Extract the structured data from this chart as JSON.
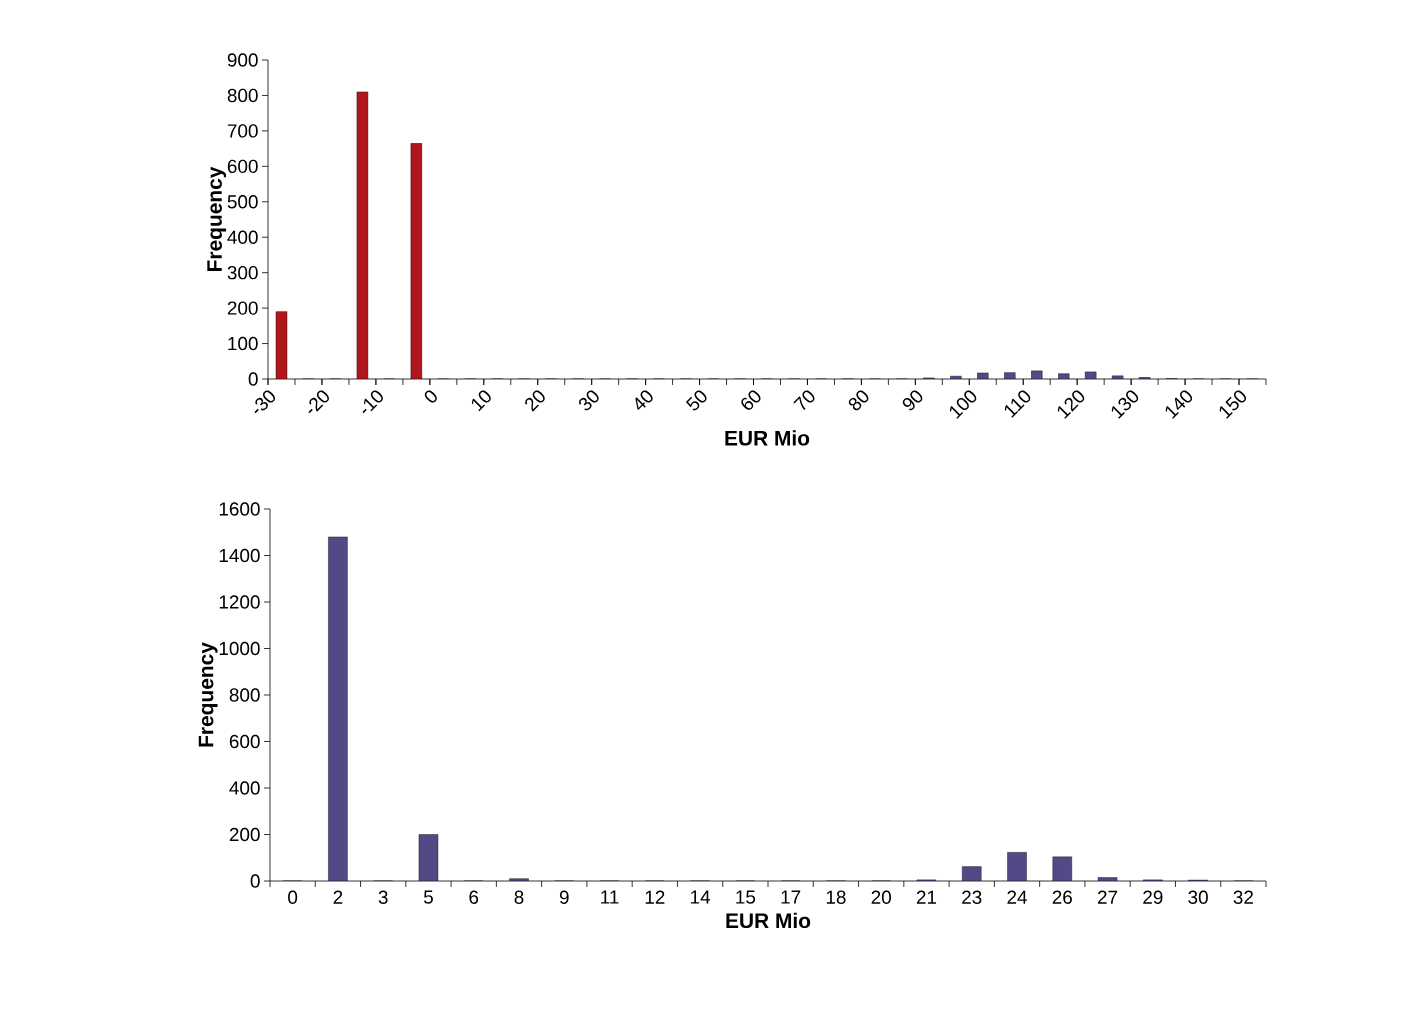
{
  "chart_data": [
    {
      "type": "histogram",
      "xlabel": "EUR Mio",
      "ylabel": "Frequency",
      "bins": [
        -30,
        -25,
        -20,
        -15,
        -10,
        -5,
        0,
        5,
        10,
        15,
        20,
        25,
        30,
        35,
        40,
        45,
        50,
        55,
        60,
        65,
        70,
        75,
        80,
        85,
        90,
        95,
        100,
        105,
        110,
        115,
        120,
        125,
        130,
        135,
        140,
        145,
        150,
        155
      ],
      "values": [
        190,
        0,
        0,
        810,
        0,
        665,
        0,
        0,
        0,
        0,
        0,
        0,
        0,
        0,
        0,
        0,
        0,
        0,
        0,
        0,
        0,
        0,
        0,
        0,
        3,
        8,
        17,
        18,
        23,
        15,
        20,
        9,
        5,
        1,
        0,
        0,
        0
      ],
      "colors": [
        "#b0161b",
        "#b0161b",
        "#b0161b",
        "#b0161b",
        "#b0161b",
        "#b0161b",
        "#514a87",
        "#514a87",
        "#514a87",
        "#514a87",
        "#514a87",
        "#514a87",
        "#514a87",
        "#514a87",
        "#514a87",
        "#514a87",
        "#514a87",
        "#514a87",
        "#514a87",
        "#514a87",
        "#514a87",
        "#514a87",
        "#514a87",
        "#514a87",
        "#514a87",
        "#514a87",
        "#514a87",
        "#514a87",
        "#514a87",
        "#514a87",
        "#514a87",
        "#514a87",
        "#514a87",
        "#514a87",
        "#514a87",
        "#514a87",
        "#514a87"
      ],
      "xlim": [
        -30,
        155
      ],
      "xticks": [
        -30,
        -20,
        -10,
        0,
        10,
        20,
        30,
        40,
        50,
        60,
        70,
        80,
        90,
        100,
        110,
        120,
        130,
        140,
        150
      ],
      "ylim": [
        0,
        900
      ],
      "yticks": [
        0,
        100,
        200,
        300,
        400,
        500,
        600,
        700,
        800,
        900
      ]
    },
    {
      "type": "bar",
      "xlabel": "EUR Mio",
      "ylabel": "Frequency",
      "categories": [
        "0",
        "2",
        "3",
        "5",
        "6",
        "8",
        "9",
        "11",
        "12",
        "14",
        "15",
        "17",
        "18",
        "20",
        "21",
        "23",
        "24",
        "26",
        "27",
        "29",
        "30",
        "32"
      ],
      "values": [
        0,
        1480,
        0,
        200,
        0,
        10,
        0,
        0,
        0,
        0,
        0,
        0,
        0,
        0,
        5,
        62,
        123,
        104,
        15,
        5,
        4,
        0
      ],
      "color": "#514a87",
      "ylim": [
        0,
        1600
      ],
      "yticks": [
        0,
        200,
        400,
        600,
        800,
        1000,
        1200,
        1400,
        1600
      ]
    }
  ]
}
